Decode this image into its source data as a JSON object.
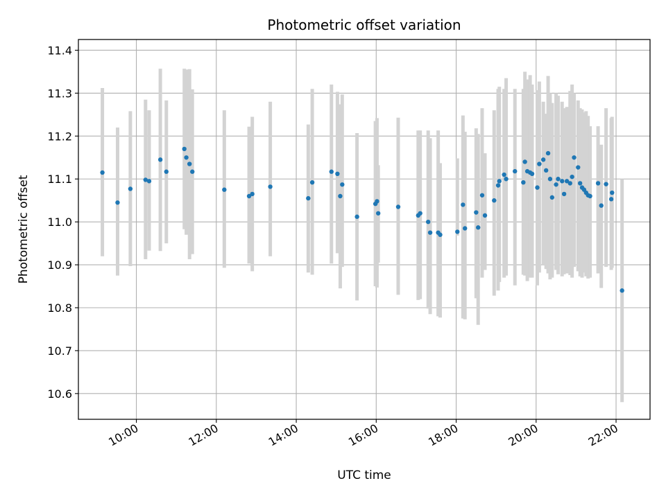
{
  "chart_data": {
    "type": "scatter",
    "title": "Photometric offset variation",
    "xlabel": "UTC time",
    "ylabel": "Photometric offset",
    "x_unit": "UTC hour of day",
    "xlim": [
      8.55,
      22.85
    ],
    "ylim": [
      10.54,
      11.425
    ],
    "x_ticks": [
      {
        "value": 10,
        "label": "10:00"
      },
      {
        "value": 12,
        "label": "12:00"
      },
      {
        "value": 14,
        "label": "14:00"
      },
      {
        "value": 16,
        "label": "16:00"
      },
      {
        "value": 18,
        "label": "18:00"
      },
      {
        "value": 20,
        "label": "20:00"
      },
      {
        "value": 22,
        "label": "22:00"
      }
    ],
    "y_ticks": [
      {
        "value": 10.6,
        "label": "10.6"
      },
      {
        "value": 10.7,
        "label": "10.7"
      },
      {
        "value": 10.8,
        "label": "10.8"
      },
      {
        "value": 10.9,
        "label": "10.9"
      },
      {
        "value": 11.0,
        "label": "11.0"
      },
      {
        "value": 11.1,
        "label": "11.1"
      },
      {
        "value": 11.2,
        "label": "11.2"
      },
      {
        "value": 11.3,
        "label": "11.3"
      },
      {
        "value": 11.4,
        "label": "11.4"
      }
    ],
    "grid": true,
    "colors": {
      "points": "#1f77b4",
      "error_bars": "#d3d3d3",
      "grid": "#b0b0b0"
    },
    "series": [
      {
        "x": [
          9.15,
          9.53,
          9.85,
          10.23,
          10.32,
          10.6,
          10.75,
          11.2,
          11.25,
          11.33,
          11.4,
          12.2,
          12.82,
          12.9,
          13.35,
          14.3,
          14.4,
          14.88,
          15.03,
          15.1,
          15.15,
          15.52,
          15.98,
          16.02,
          16.05,
          16.55,
          17.05,
          17.1,
          17.3,
          17.35,
          17.55,
          17.6,
          18.03,
          18.17,
          18.22,
          18.5,
          18.55,
          18.65,
          18.72,
          18.95,
          19.05,
          19.08,
          19.2,
          19.25,
          19.47,
          19.68,
          19.72,
          19.78,
          19.85,
          19.9,
          20.03,
          20.08,
          20.18,
          20.25,
          20.3,
          20.35,
          20.4,
          20.5,
          20.55,
          20.65,
          20.7,
          20.77,
          20.85,
          20.9,
          20.95,
          21.05,
          21.1,
          21.15,
          21.2,
          21.25,
          21.3,
          21.35,
          21.55,
          21.63,
          21.75,
          21.88,
          21.9,
          22.15
        ],
        "y": [
          11.115,
          11.045,
          11.077,
          11.098,
          11.095,
          11.145,
          11.117,
          11.17,
          11.15,
          11.135,
          11.117,
          11.075,
          11.06,
          11.065,
          11.082,
          11.055,
          11.092,
          11.117,
          11.112,
          11.06,
          11.087,
          11.012,
          11.042,
          11.048,
          11.02,
          11.035,
          11.015,
          11.02,
          11.0,
          10.975,
          10.975,
          10.97,
          10.977,
          11.04,
          10.985,
          11.022,
          10.987,
          11.062,
          11.015,
          11.05,
          11.085,
          11.095,
          11.11,
          11.1,
          11.118,
          11.092,
          11.14,
          11.118,
          11.115,
          11.112,
          11.08,
          11.135,
          11.145,
          11.12,
          11.16,
          11.1,
          11.057,
          11.087,
          11.1,
          11.095,
          11.065,
          11.095,
          11.09,
          11.105,
          11.15,
          11.127,
          11.09,
          11.08,
          11.075,
          11.068,
          11.062,
          11.06,
          11.09,
          11.038,
          11.088,
          11.053,
          11.068,
          10.84
        ],
        "err_low": [
          10.92,
          10.875,
          10.897,
          10.913,
          10.933,
          10.932,
          10.95,
          10.983,
          10.97,
          10.913,
          10.925,
          10.893,
          10.903,
          10.885,
          10.92,
          10.882,
          10.877,
          10.903,
          10.927,
          10.845,
          10.895,
          10.817,
          10.85,
          10.847,
          10.905,
          10.83,
          10.818,
          10.82,
          10.798,
          10.785,
          10.78,
          10.777,
          10.968,
          10.775,
          10.773,
          10.822,
          10.76,
          10.87,
          10.888,
          10.828,
          10.84,
          10.86,
          10.87,
          10.875,
          10.852,
          10.877,
          10.875,
          10.862,
          10.87,
          10.87,
          10.852,
          10.882,
          10.9,
          10.89,
          10.88,
          10.866,
          10.87,
          10.888,
          10.878,
          10.873,
          10.878,
          10.88,
          10.876,
          10.87,
          10.895,
          10.885,
          10.873,
          10.87,
          10.882,
          10.873,
          10.868,
          10.87,
          10.88,
          10.846,
          10.895,
          10.888,
          10.893,
          10.58
        ],
        "err_high": [
          11.312,
          11.22,
          11.258,
          11.285,
          11.26,
          11.357,
          11.283,
          11.357,
          11.355,
          11.356,
          11.309,
          11.26,
          11.222,
          11.245,
          11.28,
          11.227,
          11.31,
          11.32,
          11.303,
          11.274,
          11.297,
          11.207,
          11.235,
          11.242,
          11.132,
          11.243,
          11.213,
          11.213,
          11.213,
          11.195,
          11.213,
          11.137,
          11.148,
          11.248,
          11.21,
          11.218,
          11.205,
          11.265,
          11.16,
          11.26,
          11.31,
          11.315,
          11.31,
          11.335,
          11.31,
          11.31,
          11.35,
          11.332,
          11.342,
          11.32,
          11.307,
          11.327,
          11.28,
          11.252,
          11.34,
          11.3,
          11.277,
          11.3,
          11.294,
          11.28,
          11.265,
          11.268,
          11.305,
          11.32,
          11.3,
          11.283,
          11.265,
          11.262,
          11.255,
          11.258,
          11.247,
          11.223,
          11.223,
          11.18,
          11.265,
          11.242,
          11.245,
          11.1
        ]
      }
    ]
  }
}
